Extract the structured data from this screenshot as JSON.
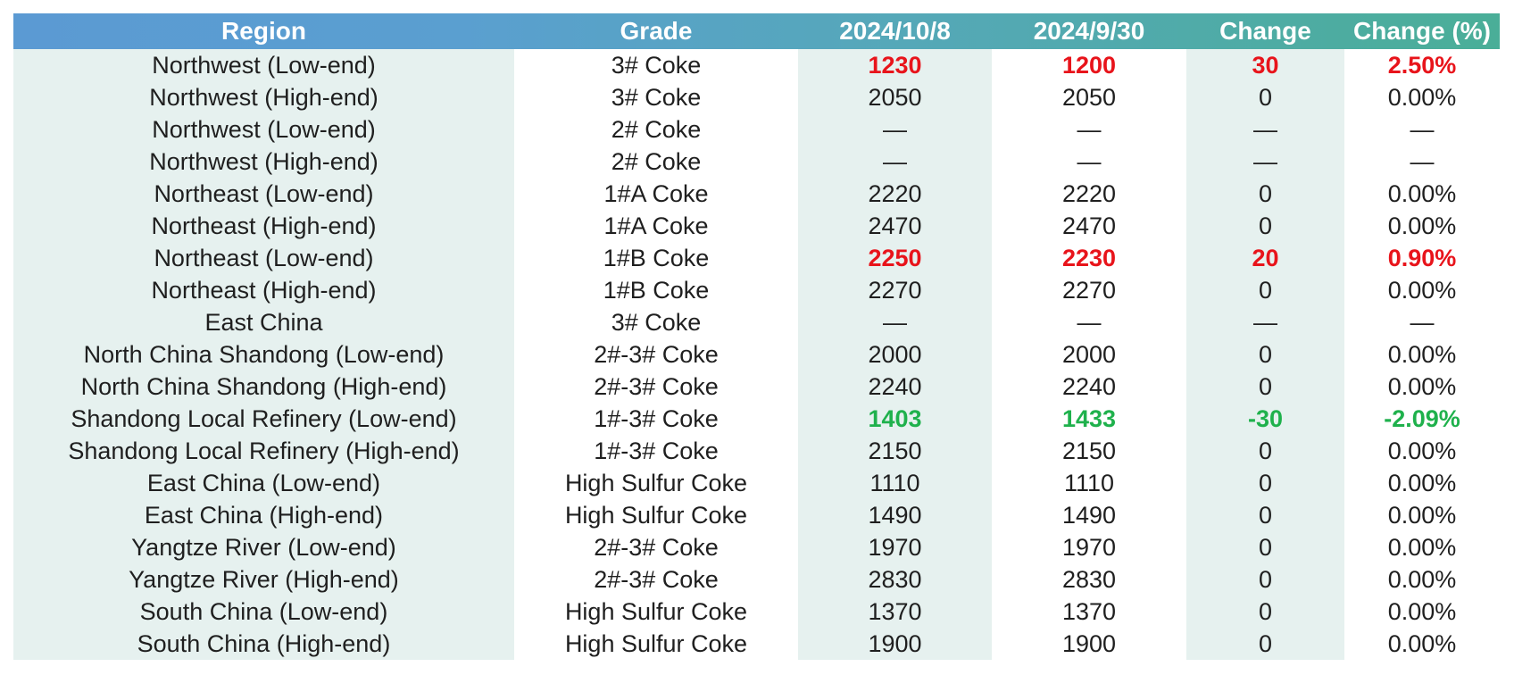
{
  "header": {
    "region": "Region",
    "grade": "Grade",
    "date1": "2024/10/8",
    "date2": "2024/9/30",
    "change": "Change",
    "change_pct": "Change (%)"
  },
  "colors": {
    "increase": "#e8141b",
    "decrease": "#1fb14c",
    "header_gradient_start": "#5b9ad3",
    "header_gradient_end": "#4aae98"
  },
  "rows": [
    {
      "region": "Northwest (Low-end)",
      "grade": "3# Coke",
      "date1": "1230",
      "date2": "1200",
      "change": "30",
      "change_pct": "2.50%",
      "trend": "up"
    },
    {
      "region": "Northwest (High-end)",
      "grade": "3# Coke",
      "date1": "2050",
      "date2": "2050",
      "change": "0",
      "change_pct": "0.00%",
      "trend": "flat"
    },
    {
      "region": "Northwest (Low-end)",
      "grade": "2# Coke",
      "date1": "—",
      "date2": "—",
      "change": "—",
      "change_pct": "—",
      "trend": "flat"
    },
    {
      "region": "Northwest (High-end)",
      "grade": "2# Coke",
      "date1": "—",
      "date2": "—",
      "change": "—",
      "change_pct": "—",
      "trend": "flat"
    },
    {
      "region": "Northeast (Low-end)",
      "grade": "1#A Coke",
      "date1": "2220",
      "date2": "2220",
      "change": "0",
      "change_pct": "0.00%",
      "trend": "flat"
    },
    {
      "region": "Northeast (High-end)",
      "grade": "1#A Coke",
      "date1": "2470",
      "date2": "2470",
      "change": "0",
      "change_pct": "0.00%",
      "trend": "flat"
    },
    {
      "region": "Northeast (Low-end)",
      "grade": "1#B Coke",
      "date1": "2250",
      "date2": "2230",
      "change": "20",
      "change_pct": "0.90%",
      "trend": "up"
    },
    {
      "region": "Northeast (High-end)",
      "grade": "1#B Coke",
      "date1": "2270",
      "date2": "2270",
      "change": "0",
      "change_pct": "0.00%",
      "trend": "flat"
    },
    {
      "region": "East China",
      "grade": "3# Coke",
      "date1": "—",
      "date2": "—",
      "change": "—",
      "change_pct": "—",
      "trend": "flat"
    },
    {
      "region": "North China Shandong (Low-end)",
      "grade": "2#-3# Coke",
      "date1": "2000",
      "date2": "2000",
      "change": "0",
      "change_pct": "0.00%",
      "trend": "flat"
    },
    {
      "region": "North China Shandong (High-end)",
      "grade": "2#-3# Coke",
      "date1": "2240",
      "date2": "2240",
      "change": "0",
      "change_pct": "0.00%",
      "trend": "flat"
    },
    {
      "region": "Shandong Local Refinery (Low-end)",
      "grade": "1#-3# Coke",
      "date1": "1403",
      "date2": "1433",
      "change": "-30",
      "change_pct": "-2.09%",
      "trend": "down"
    },
    {
      "region": "Shandong Local Refinery (High-end)",
      "grade": "1#-3# Coke",
      "date1": "2150",
      "date2": "2150",
      "change": "0",
      "change_pct": "0.00%",
      "trend": "flat"
    },
    {
      "region": "East China (Low-end)",
      "grade": "High Sulfur Coke",
      "date1": "1110",
      "date2": "1110",
      "change": "0",
      "change_pct": "0.00%",
      "trend": "flat"
    },
    {
      "region": "East China (High-end)",
      "grade": "High Sulfur Coke",
      "date1": "1490",
      "date2": "1490",
      "change": "0",
      "change_pct": "0.00%",
      "trend": "flat"
    },
    {
      "region": "Yangtze River (Low-end)",
      "grade": "2#-3# Coke",
      "date1": "1970",
      "date2": "1970",
      "change": "0",
      "change_pct": "0.00%",
      "trend": "flat"
    },
    {
      "region": "Yangtze River (High-end)",
      "grade": "2#-3# Coke",
      "date1": "2830",
      "date2": "2830",
      "change": "0",
      "change_pct": "0.00%",
      "trend": "flat"
    },
    {
      "region": "South China (Low-end)",
      "grade": "High Sulfur Coke",
      "date1": "1370",
      "date2": "1370",
      "change": "0",
      "change_pct": "0.00%",
      "trend": "flat"
    },
    {
      "region": "South China (High-end)",
      "grade": "High Sulfur Coke",
      "date1": "1900",
      "date2": "1900",
      "change": "0",
      "change_pct": "0.00%",
      "trend": "flat"
    }
  ]
}
